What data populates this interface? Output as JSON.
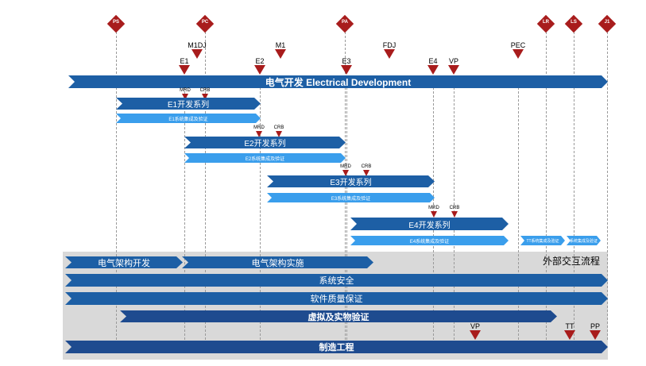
{
  "gates": [
    {
      "label": "PS",
      "pos": 146
    },
    {
      "label": "PC",
      "pos": 258
    },
    {
      "label": "PA",
      "pos": 434
    },
    {
      "label": "LR",
      "pos": 687
    },
    {
      "label": "LS",
      "pos": 722
    },
    {
      "label": "J1",
      "pos": 764
    }
  ],
  "top_milestones": [
    {
      "label": "M1DJ",
      "pos": 248,
      "row": 0
    },
    {
      "label": "M1",
      "pos": 353,
      "row": 0
    },
    {
      "label": "FDJ",
      "pos": 490,
      "row": 0
    },
    {
      "label": "PEC",
      "pos": 652,
      "row": 0
    },
    {
      "label": "E1",
      "pos": 232,
      "row": 1
    },
    {
      "label": "E2",
      "pos": 327,
      "row": 1
    },
    {
      "label": "E3",
      "pos": 436,
      "row": 1
    },
    {
      "label": "E4",
      "pos": 545,
      "row": 1
    },
    {
      "label": "VP",
      "pos": 571,
      "row": 1
    }
  ],
  "review_milestones": [
    {
      "label": "MRD",
      "pos": 233,
      "bar": 0
    },
    {
      "label": "CRB",
      "pos": 258,
      "bar": 0
    },
    {
      "label": "MRD",
      "pos": 326,
      "bar": 1
    },
    {
      "label": "CRB",
      "pos": 351,
      "bar": 1
    },
    {
      "label": "MRD",
      "pos": 435,
      "bar": 2
    },
    {
      "label": "CRB",
      "pos": 461,
      "bar": 2
    },
    {
      "label": "MRD",
      "pos": 546,
      "bar": 3
    },
    {
      "label": "CRB",
      "pos": 572,
      "bar": 3
    }
  ],
  "bottom_milestones": [
    {
      "label": "VP",
      "pos": 598
    },
    {
      "label": "TT",
      "pos": 717
    },
    {
      "label": "PP",
      "pos": 749
    }
  ],
  "main_bar": {
    "label": "电气开发  Electrical Development"
  },
  "dev_bars": [
    {
      "label": "E1开发系列",
      "sub_label": "E1系统集成及验证"
    },
    {
      "label": "E2开发系列",
      "sub_label": "E2系统集成及验证"
    },
    {
      "label": "E3开发系列",
      "sub_label": "E3系统集成及验证"
    },
    {
      "label": "E4开发系列",
      "sub_label": "E4系统集成及验证"
    }
  ],
  "post_bars": [
    {
      "label": "TT系统集成及验证"
    },
    {
      "label": "系统集成及验证"
    }
  ],
  "external_process": {
    "label": "外部交互流程"
  },
  "process_bars": [
    {
      "label": "电气架构开发"
    },
    {
      "label": "电气架构实施"
    },
    {
      "label": "系统安全"
    },
    {
      "label": "软件质量保证"
    },
    {
      "label": "虚拟及实物验证"
    },
    {
      "label": "制造工程"
    }
  ],
  "colors": {
    "gate": "#a81c1c",
    "milestone": "#a81c1c",
    "main_bar": "#1d5fa5",
    "dev_bar": "#1d5fa5",
    "sub_bar": "#3a9eec",
    "process_bar": "#1e4b8f",
    "gray_zone": "#d9d9d9"
  }
}
